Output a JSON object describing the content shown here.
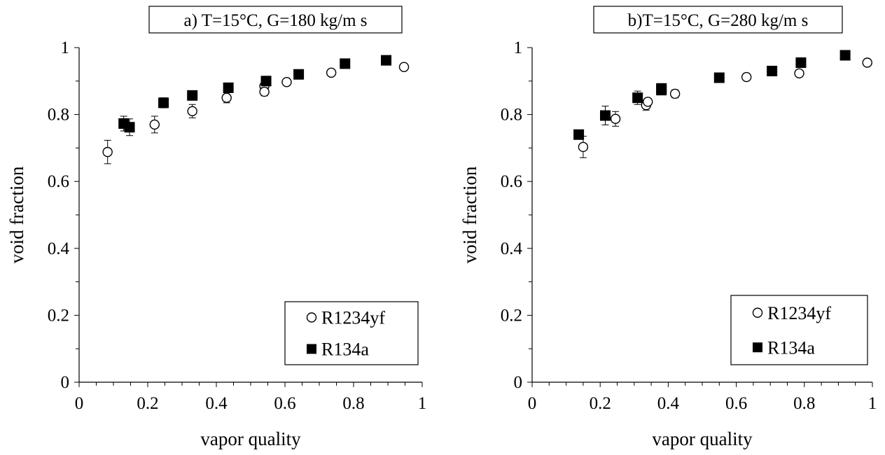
{
  "chart_data": [
    {
      "type": "scatter",
      "title": "a) T=15°C, G=180 kg/m s",
      "xlabel": "vapor quality",
      "ylabel": "void fraction",
      "xlim": [
        0,
        1
      ],
      "ylim": [
        0,
        1
      ],
      "xticks": [
        "0",
        "0.2",
        "0.4",
        "0.6",
        "0.8",
        "1"
      ],
      "yticks": [
        "0",
        "0.2",
        "0.4",
        "0.6",
        "0.8",
        "1"
      ],
      "grid": false,
      "legend_position": "bottom-right",
      "series": [
        {
          "name": "R1234yf",
          "marker": "open-circle",
          "points": [
            {
              "x": 0.083,
              "y": 0.688,
              "err": 0.035
            },
            {
              "x": 0.22,
              "y": 0.77,
              "err": 0.025
            },
            {
              "x": 0.33,
              "y": 0.81,
              "err": 0.02
            },
            {
              "x": 0.43,
              "y": 0.85,
              "err": 0.015
            },
            {
              "x": 0.54,
              "y": 0.885,
              "err": 0
            },
            {
              "x": 0.54,
              "y": 0.868,
              "err": 0.012
            },
            {
              "x": 0.605,
              "y": 0.897,
              "err": 0
            },
            {
              "x": 0.735,
              "y": 0.925,
              "err": 0
            },
            {
              "x": 0.947,
              "y": 0.942,
              "err": 0
            }
          ]
        },
        {
          "name": "R134a",
          "marker": "filled-square",
          "points": [
            {
              "x": 0.13,
              "y": 0.773,
              "err": 0.022
            },
            {
              "x": 0.147,
              "y": 0.762,
              "err": 0.025
            },
            {
              "x": 0.246,
              "y": 0.835,
              "err": 0.015
            },
            {
              "x": 0.33,
              "y": 0.857,
              "err": 0.01
            },
            {
              "x": 0.435,
              "y": 0.88,
              "err": 0.005
            },
            {
              "x": 0.545,
              "y": 0.9,
              "err": 0.005
            },
            {
              "x": 0.64,
              "y": 0.92,
              "err": 0
            },
            {
              "x": 0.775,
              "y": 0.952,
              "err": 0
            },
            {
              "x": 0.895,
              "y": 0.962,
              "err": 0
            }
          ]
        }
      ]
    },
    {
      "type": "scatter",
      "title": "b)T=15°C, G=280 kg/m s",
      "xlabel": "vapor quality",
      "ylabel": "void fraction",
      "xlim": [
        0,
        1
      ],
      "ylim": [
        0,
        1
      ],
      "xticks": [
        "0",
        "0.2",
        "0.4",
        "0.6",
        "0.8",
        "1"
      ],
      "yticks": [
        "0",
        "0.2",
        "0.4",
        "0.6",
        "0.8",
        "1"
      ],
      "grid": false,
      "legend_position": "bottom-right",
      "series": [
        {
          "name": "R1234yf",
          "marker": "open-circle",
          "points": [
            {
              "x": 0.15,
              "y": 0.703,
              "err": 0.032
            },
            {
              "x": 0.245,
              "y": 0.787,
              "err": 0.022
            },
            {
              "x": 0.335,
              "y": 0.828,
              "err": 0.015
            },
            {
              "x": 0.34,
              "y": 0.838,
              "err": 0
            },
            {
              "x": 0.42,
              "y": 0.862,
              "err": 0.012
            },
            {
              "x": 0.63,
              "y": 0.912,
              "err": 0
            },
            {
              "x": 0.785,
              "y": 0.923,
              "err": 0.005
            },
            {
              "x": 0.985,
              "y": 0.955,
              "err": 0
            }
          ]
        },
        {
          "name": "R134a",
          "marker": "filled-square",
          "points": [
            {
              "x": 0.137,
              "y": 0.74,
              "err": 0
            },
            {
              "x": 0.215,
              "y": 0.797,
              "err": 0.028
            },
            {
              "x": 0.31,
              "y": 0.85,
              "err": 0.02
            },
            {
              "x": 0.38,
              "y": 0.878,
              "err": 0.008
            },
            {
              "x": 0.38,
              "y": 0.873,
              "err": 0
            },
            {
              "x": 0.55,
              "y": 0.91,
              "err": 0
            },
            {
              "x": 0.705,
              "y": 0.93,
              "err": 0
            },
            {
              "x": 0.79,
              "y": 0.955,
              "err": 0
            },
            {
              "x": 0.92,
              "y": 0.977,
              "err": 0
            }
          ]
        }
      ]
    }
  ]
}
